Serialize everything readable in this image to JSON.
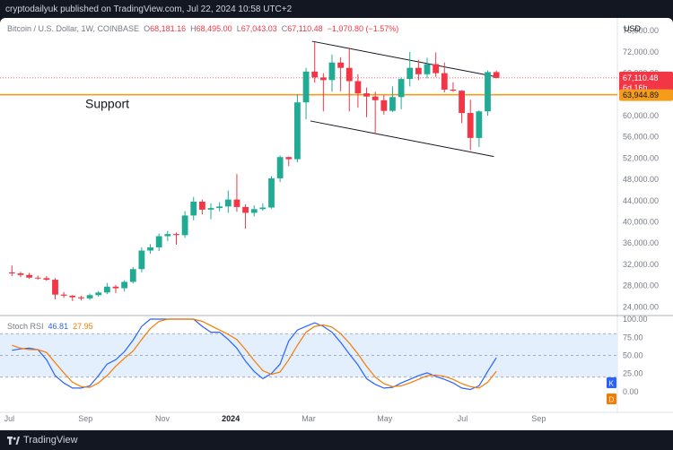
{
  "header": {
    "publish_text": "cryptodailyuk published on TradingView.com, Jul 22, 2024 10:58 UTC+2"
  },
  "legend": {
    "symbol": "Bitcoin / U.S. Dollar, 1W, COINBASE",
    "open_label": "O",
    "open": "68,181.16",
    "high_label": "H",
    "high": "68,495.00",
    "low_label": "L",
    "low": "67,043.03",
    "close_label": "C",
    "close": "67,110.48",
    "change": "−1,070.80 (−1.57%)"
  },
  "currency": "USD",
  "price_tag": {
    "price": "67,110.48",
    "countdown": "6d 16h"
  },
  "support": {
    "label": "Support",
    "price": "63,944.89",
    "value": 63944.89
  },
  "rsi": {
    "title": "Stoch RSI",
    "k": "46.81",
    "d": "27.95",
    "k_badge": "K",
    "d_badge": "D"
  },
  "footer": {
    "brand": "TradingView"
  },
  "colors": {
    "up": "#22ab94",
    "down": "#f23645",
    "support": "#f59c1a",
    "k": "#2962ff",
    "d": "#f57c00",
    "band": "#e3effd"
  },
  "chart_data": [
    {
      "type": "candlestick",
      "title": "Bitcoin / U.S. Dollar, 1W, COINBASE",
      "y_ticks": [
        24000,
        28000,
        32000,
        36000,
        40000,
        44000,
        48000,
        52000,
        56000,
        60000,
        64000,
        68000,
        72000,
        76000
      ],
      "y_tick_labels": [
        "24,000.00",
        "28,000.00",
        "32,000.00",
        "36,000.00",
        "40,000.00",
        "44,000.00",
        "48,000.00",
        "52,000.00",
        "56,000.00",
        "60,000.00",
        "64,000.00",
        "68,000.00",
        "72,000.00",
        "76,000.00"
      ],
      "ylim": [
        22700,
        78400
      ],
      "x_ticks": [
        {
          "label": "Jul",
          "index": -0.3
        },
        {
          "label": "Sep",
          "index": 8.5
        },
        {
          "label": "Nov",
          "index": 17.4
        },
        {
          "label": "2024",
          "index": 25.3
        },
        {
          "label": "Mar",
          "index": 34.3
        },
        {
          "label": "May",
          "index": 43.1
        },
        {
          "label": "Jul",
          "index": 52.1
        },
        {
          "label": "Sep",
          "index": 60.9
        }
      ],
      "candles": [
        [
          30500,
          31800,
          29800,
          30300
        ],
        [
          30300,
          30600,
          29600,
          30000
        ],
        [
          30000,
          30400,
          29300,
          29500
        ],
        [
          29500,
          29900,
          29100,
          29400
        ],
        [
          29400,
          29800,
          28900,
          29100
        ],
        [
          29100,
          29400,
          25400,
          26300
        ],
        [
          26300,
          26800,
          25700,
          26100
        ],
        [
          26100,
          26200,
          25100,
          25800
        ],
        [
          25800,
          26100,
          25200,
          25600
        ],
        [
          25600,
          26500,
          25300,
          26200
        ],
        [
          26200,
          27000,
          25900,
          26700
        ],
        [
          26700,
          28500,
          26400,
          27800
        ],
        [
          27800,
          28100,
          26600,
          27500
        ],
        [
          27500,
          29000,
          26900,
          28700
        ],
        [
          28700,
          31500,
          28400,
          31100
        ],
        [
          31100,
          35200,
          30500,
          34600
        ],
        [
          34600,
          35800,
          34000,
          35200
        ],
        [
          35200,
          37800,
          34500,
          37300
        ],
        [
          37300,
          38300,
          36400,
          37700
        ],
        [
          37700,
          38000,
          35700,
          37500
        ],
        [
          37500,
          42000,
          37000,
          41200
        ],
        [
          41200,
          44700,
          40300,
          43800
        ],
        [
          43800,
          44200,
          41400,
          42300
        ],
        [
          42300,
          43500,
          40500,
          42600
        ],
        [
          42600,
          43700,
          42000,
          42900
        ],
        [
          42900,
          45900,
          41700,
          44200
        ],
        [
          44200,
          49000,
          41900,
          42800
        ],
        [
          42800,
          43300,
          38700,
          41700
        ],
        [
          41700,
          43100,
          41000,
          42400
        ],
        [
          42400,
          43500,
          42100,
          42700
        ],
        [
          42700,
          48600,
          42500,
          48200
        ],
        [
          48200,
          52500,
          47500,
          52200
        ],
        [
          52200,
          52300,
          50500,
          51800
        ],
        [
          51800,
          64000,
          51200,
          62500
        ],
        [
          62500,
          69000,
          59300,
          68300
        ],
        [
          68300,
          73800,
          66200,
          67200
        ],
        [
          67200,
          68000,
          60800,
          66700
        ],
        [
          66700,
          71500,
          64500,
          70000
        ],
        [
          70000,
          71000,
          64600,
          69000
        ],
        [
          69000,
          72800,
          60800,
          66500
        ],
        [
          66500,
          67800,
          61500,
          64200
        ],
        [
          64200,
          65300,
          59700,
          63600
        ],
        [
          63600,
          64500,
          56500,
          62900
        ],
        [
          62900,
          63900,
          60200,
          60900
        ],
        [
          60900,
          65500,
          60700,
          63500
        ],
        [
          63500,
          67200,
          61200,
          66900
        ],
        [
          66900,
          72000,
          65500,
          69000
        ],
        [
          69000,
          70500,
          66700,
          67800
        ],
        [
          67800,
          70900,
          67000,
          69700
        ],
        [
          69700,
          71900,
          67300,
          68000
        ],
        [
          68000,
          70000,
          64400,
          64900
        ],
        [
          64900,
          66300,
          64500,
          64700
        ],
        [
          64700,
          64800,
          58600,
          60500
        ],
        [
          60500,
          63000,
          53500,
          55800
        ],
        [
          55800,
          61000,
          54100,
          60800
        ],
        [
          60800,
          68500,
          60000,
          68200
        ],
        [
          68200,
          68500,
          67000,
          67100
        ]
      ],
      "current_price": 67110.48,
      "support_level": 63944.89,
      "channel_upper": [
        [
          34.7,
          74000
        ],
        [
          55.7,
          67400
        ]
      ],
      "channel_lower": [
        [
          34.5,
          59000
        ],
        [
          55.7,
          52300
        ]
      ],
      "current_price_line": true
    },
    {
      "type": "line",
      "title": "Stoch RSI",
      "y_ticks": [
        0,
        25,
        50,
        75,
        100
      ],
      "y_tick_labels": [
        "0.00",
        "25.00",
        "50.00",
        "75.00",
        "100.00"
      ],
      "ylim": [
        -10,
        105
      ],
      "band": [
        20,
        80
      ],
      "series": [
        {
          "name": "K",
          "values": [
            57,
            59,
            60,
            58,
            44,
            22,
            12,
            5,
            5,
            8,
            22,
            38,
            44,
            55,
            71,
            90,
            100,
            100,
            100,
            100,
            100,
            100,
            90,
            82,
            82,
            72,
            60,
            42,
            28,
            18,
            25,
            38,
            70,
            85,
            90,
            95,
            90,
            82,
            68,
            52,
            37,
            18,
            10,
            5,
            6,
            12,
            17,
            22,
            26,
            21,
            17,
            12,
            5,
            3,
            8,
            28,
            46.81
          ]
        },
        {
          "name": "D",
          "values": [
            64,
            60,
            58,
            58,
            54,
            40,
            26,
            13,
            7,
            6,
            12,
            22,
            35,
            46,
            56,
            72,
            87,
            97,
            100,
            100,
            100,
            100,
            97,
            91,
            85,
            79,
            72,
            58,
            43,
            29,
            24,
            27,
            44,
            64,
            82,
            90,
            92,
            89,
            80,
            67,
            52,
            35,
            20,
            11,
            7,
            8,
            12,
            17,
            22,
            23,
            21,
            17,
            11,
            7,
            5,
            13,
            27.95
          ]
        }
      ]
    }
  ]
}
